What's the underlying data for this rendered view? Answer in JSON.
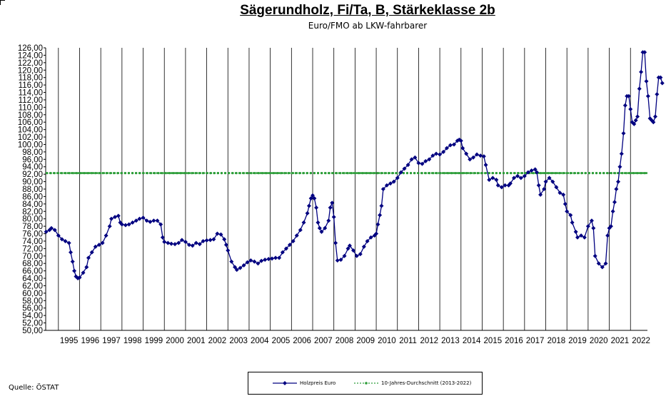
{
  "title": "Sägerundholz, Fi/Ta, B, Stärkeklasse 2b",
  "subtitle": "Euro/FMO ab LKW-fahrbarer",
  "source": "Quelle: ÖSTAT",
  "colors": {
    "price_series": "#000080",
    "average_series": "#2E9E3A"
  },
  "legend": [
    {
      "name": "Holzpreis Euro",
      "color": "#000080",
      "style": "solid-diamond"
    },
    {
      "name": "10-Jahres-Durchschnitt (2013-2022)",
      "color": "#2E9E3A",
      "style": "dashed-dot"
    }
  ],
  "chart_data": {
    "type": "line",
    "title": "Sägerundholz, Fi/Ta, B, Stärkeklasse 2b",
    "subtitle": "Euro/FMO ab LKW-fahrbarer",
    "xlabel": "",
    "ylabel": "",
    "ylim": [
      50,
      126
    ],
    "xlim": [
      1994.4,
      2022.8
    ],
    "grid": {
      "vertical": true,
      "horizontal": false
    },
    "legend_position": "bottom",
    "y_ticks": [
      "50,00",
      "52,00",
      "54,00",
      "56,00",
      "58,00",
      "60,00",
      "62,00",
      "64,00",
      "66,00",
      "68,00",
      "70,00",
      "72,00",
      "74,00",
      "76,00",
      "78,00",
      "80,00",
      "82,00",
      "84,00",
      "86,00",
      "88,00",
      "90,00",
      "92,00",
      "94,00",
      "96,00",
      "98,00",
      "100,00",
      "102,00",
      "104,00",
      "106,00",
      "108,00",
      "110,00",
      "112,00",
      "114,00",
      "116,00",
      "118,00",
      "120,00",
      "122,00",
      "124,00",
      "126,00"
    ],
    "x_ticks": [
      "1995",
      "1996",
      "1997",
      "1998",
      "1999",
      "2000",
      "2001",
      "2002",
      "2003",
      "2004",
      "2005",
      "2006",
      "2007",
      "2008",
      "2009",
      "2010",
      "2011",
      "2012",
      "2013",
      "2014",
      "2015",
      "2016",
      "2017",
      "2018",
      "2019",
      "2020",
      "2021",
      "2022"
    ],
    "series": [
      {
        "name": "Holzpreis Euro",
        "points": [
          [
            1994.42,
            76.5
          ],
          [
            1994.58,
            77.0
          ],
          [
            1994.67,
            77.5
          ],
          [
            1994.83,
            77.0
          ],
          [
            1995.0,
            75.5
          ],
          [
            1995.17,
            74.5
          ],
          [
            1995.33,
            74.0
          ],
          [
            1995.5,
            73.5
          ],
          [
            1995.58,
            71.0
          ],
          [
            1995.67,
            68.5
          ],
          [
            1995.75,
            66.0
          ],
          [
            1995.83,
            64.5
          ],
          [
            1995.92,
            64.0
          ],
          [
            1996.0,
            64.2
          ],
          [
            1996.17,
            65.5
          ],
          [
            1996.33,
            67.0
          ],
          [
            1996.42,
            69.5
          ],
          [
            1996.58,
            71.0
          ],
          [
            1996.75,
            72.5
          ],
          [
            1996.92,
            73.0
          ],
          [
            1997.08,
            73.5
          ],
          [
            1997.25,
            75.5
          ],
          [
            1997.42,
            78.0
          ],
          [
            1997.5,
            80.0
          ],
          [
            1997.67,
            80.5
          ],
          [
            1997.83,
            80.8
          ],
          [
            1997.92,
            79.0
          ],
          [
            1998.0,
            78.5
          ],
          [
            1998.17,
            78.3
          ],
          [
            1998.33,
            78.5
          ],
          [
            1998.5,
            79.0
          ],
          [
            1998.67,
            79.5
          ],
          [
            1998.83,
            80.0
          ],
          [
            1999.0,
            80.3
          ],
          [
            1999.17,
            79.5
          ],
          [
            1999.33,
            79.2
          ],
          [
            1999.5,
            79.5
          ],
          [
            1999.67,
            79.5
          ],
          [
            1999.83,
            78.5
          ],
          [
            1999.92,
            75.0
          ],
          [
            2000.0,
            73.8
          ],
          [
            2000.17,
            73.5
          ],
          [
            2000.33,
            73.3
          ],
          [
            2000.5,
            73.2
          ],
          [
            2000.67,
            73.5
          ],
          [
            2000.83,
            74.3
          ],
          [
            2001.0,
            73.8
          ],
          [
            2001.17,
            73.0
          ],
          [
            2001.33,
            72.8
          ],
          [
            2001.5,
            73.5
          ],
          [
            2001.67,
            73.2
          ],
          [
            2001.83,
            74.0
          ],
          [
            2002.0,
            74.2
          ],
          [
            2002.17,
            74.3
          ],
          [
            2002.33,
            74.5
          ],
          [
            2002.5,
            76.0
          ],
          [
            2002.67,
            75.8
          ],
          [
            2002.83,
            74.5
          ],
          [
            2002.92,
            73.0
          ],
          [
            2003.0,
            71.5
          ],
          [
            2003.17,
            68.5
          ],
          [
            2003.33,
            67.0
          ],
          [
            2003.42,
            66.3
          ],
          [
            2003.58,
            66.8
          ],
          [
            2003.75,
            67.5
          ],
          [
            2003.92,
            68.3
          ],
          [
            2004.08,
            68.8
          ],
          [
            2004.25,
            68.5
          ],
          [
            2004.42,
            68.0
          ],
          [
            2004.58,
            68.7
          ],
          [
            2004.75,
            69.0
          ],
          [
            2004.92,
            69.2
          ],
          [
            2005.08,
            69.3
          ],
          [
            2005.25,
            69.5
          ],
          [
            2005.42,
            69.5
          ],
          [
            2005.58,
            71.0
          ],
          [
            2005.75,
            72.0
          ],
          [
            2005.92,
            73.0
          ],
          [
            2006.08,
            74.0
          ],
          [
            2006.25,
            75.5
          ],
          [
            2006.42,
            77.0
          ],
          [
            2006.58,
            79.0
          ],
          [
            2006.75,
            81.5
          ],
          [
            2006.83,
            83.5
          ],
          [
            2006.92,
            85.5
          ],
          [
            2007.0,
            86.3
          ],
          [
            2007.08,
            85.5
          ],
          [
            2007.17,
            83.0
          ],
          [
            2007.25,
            79.0
          ],
          [
            2007.33,
            77.5
          ],
          [
            2007.42,
            76.5
          ],
          [
            2007.58,
            77.5
          ],
          [
            2007.75,
            79.5
          ],
          [
            2007.83,
            83.0
          ],
          [
            2007.92,
            84.3
          ],
          [
            2008.0,
            80.5
          ],
          [
            2008.08,
            73.5
          ],
          [
            2008.17,
            68.8
          ],
          [
            2008.33,
            69.0
          ],
          [
            2008.5,
            70.0
          ],
          [
            2008.67,
            72.0
          ],
          [
            2008.75,
            72.8
          ],
          [
            2008.92,
            71.5
          ],
          [
            2009.08,
            70.0
          ],
          [
            2009.25,
            70.5
          ],
          [
            2009.42,
            72.5
          ],
          [
            2009.58,
            74.0
          ],
          [
            2009.75,
            75.0
          ],
          [
            2009.92,
            75.5
          ],
          [
            2010.0,
            76.0
          ],
          [
            2010.08,
            78.5
          ],
          [
            2010.17,
            81.0
          ],
          [
            2010.25,
            83.5
          ],
          [
            2010.33,
            88.0
          ],
          [
            2010.5,
            89.0
          ],
          [
            2010.67,
            89.5
          ],
          [
            2010.83,
            90.0
          ],
          [
            2011.0,
            91.0
          ],
          [
            2011.17,
            92.5
          ],
          [
            2011.33,
            93.5
          ],
          [
            2011.5,
            94.5
          ],
          [
            2011.67,
            96.0
          ],
          [
            2011.83,
            96.5
          ],
          [
            2012.0,
            95.0
          ],
          [
            2012.17,
            94.8
          ],
          [
            2012.33,
            95.5
          ],
          [
            2012.5,
            96.0
          ],
          [
            2012.67,
            97.0
          ],
          [
            2012.83,
            97.5
          ],
          [
            2013.0,
            97.3
          ],
          [
            2013.17,
            98.0
          ],
          [
            2013.33,
            99.0
          ],
          [
            2013.5,
            99.8
          ],
          [
            2013.67,
            100.0
          ],
          [
            2013.83,
            101.0
          ],
          [
            2013.92,
            101.3
          ],
          [
            2014.0,
            101.0
          ],
          [
            2014.08,
            99.0
          ],
          [
            2014.25,
            97.5
          ],
          [
            2014.42,
            96.0
          ],
          [
            2014.58,
            96.5
          ],
          [
            2014.75,
            97.3
          ],
          [
            2014.92,
            97.0
          ],
          [
            2015.08,
            96.8
          ],
          [
            2015.17,
            94.5
          ],
          [
            2015.33,
            90.5
          ],
          [
            2015.5,
            91.0
          ],
          [
            2015.67,
            90.5
          ],
          [
            2015.75,
            89.0
          ],
          [
            2015.92,
            88.5
          ],
          [
            2016.08,
            89.0
          ],
          [
            2016.25,
            89.0
          ],
          [
            2016.33,
            89.5
          ],
          [
            2016.5,
            91.0
          ],
          [
            2016.67,
            91.5
          ],
          [
            2016.83,
            91.0
          ],
          [
            2017.0,
            91.5
          ],
          [
            2017.17,
            92.5
          ],
          [
            2017.33,
            93.0
          ],
          [
            2017.5,
            93.3
          ],
          [
            2017.58,
            92.5
          ],
          [
            2017.67,
            89.0
          ],
          [
            2017.75,
            86.5
          ],
          [
            2017.92,
            88.0
          ],
          [
            2018.0,
            90.0
          ],
          [
            2018.17,
            91.0
          ],
          [
            2018.33,
            90.0
          ],
          [
            2018.5,
            88.5
          ],
          [
            2018.67,
            87.0
          ],
          [
            2018.83,
            86.5
          ],
          [
            2018.92,
            84.0
          ],
          [
            2019.0,
            82.0
          ],
          [
            2019.17,
            81.0
          ],
          [
            2019.25,
            79.0
          ],
          [
            2019.42,
            76.5
          ],
          [
            2019.5,
            75.0
          ],
          [
            2019.67,
            75.5
          ],
          [
            2019.83,
            75.0
          ],
          [
            2020.0,
            78.0
          ],
          [
            2020.17,
            79.5
          ],
          [
            2020.25,
            77.5
          ],
          [
            2020.33,
            70.0
          ],
          [
            2020.5,
            68.0
          ],
          [
            2020.67,
            67.0
          ],
          [
            2020.83,
            68.0
          ],
          [
            2020.92,
            75.5
          ],
          [
            2021.0,
            77.5
          ],
          [
            2021.08,
            78.0
          ],
          [
            2021.17,
            82.0
          ],
          [
            2021.25,
            84.5
          ],
          [
            2021.33,
            88.0
          ],
          [
            2021.42,
            90.0
          ],
          [
            2021.5,
            94.0
          ],
          [
            2021.58,
            97.5
          ],
          [
            2021.67,
            103.0
          ],
          [
            2021.75,
            110.5
          ],
          [
            2021.83,
            113.0
          ],
          [
            2021.92,
            113.0
          ],
          [
            2022.0,
            109.5
          ],
          [
            2022.08,
            106.0
          ],
          [
            2022.17,
            105.5
          ],
          [
            2022.25,
            106.5
          ],
          [
            2022.33,
            107.5
          ],
          [
            2022.42,
            115.0
          ],
          [
            2022.5,
            119.5
          ],
          [
            2022.58,
            124.8
          ],
          [
            2022.67,
            124.8
          ],
          [
            2022.75,
            117.0
          ],
          [
            2022.83,
            113.0
          ],
          [
            2022.92,
            107.0
          ],
          [
            2023.0,
            106.5
          ],
          [
            2023.08,
            106.0
          ],
          [
            2023.17,
            107.5
          ],
          [
            2023.25,
            113.5
          ],
          [
            2023.33,
            118.0
          ],
          [
            2023.42,
            118.0
          ],
          [
            2023.5,
            116.5
          ]
        ]
      },
      {
        "name": "10-Jahres-Durchschnitt (2013-2022)",
        "constant": 92.3
      }
    ]
  }
}
